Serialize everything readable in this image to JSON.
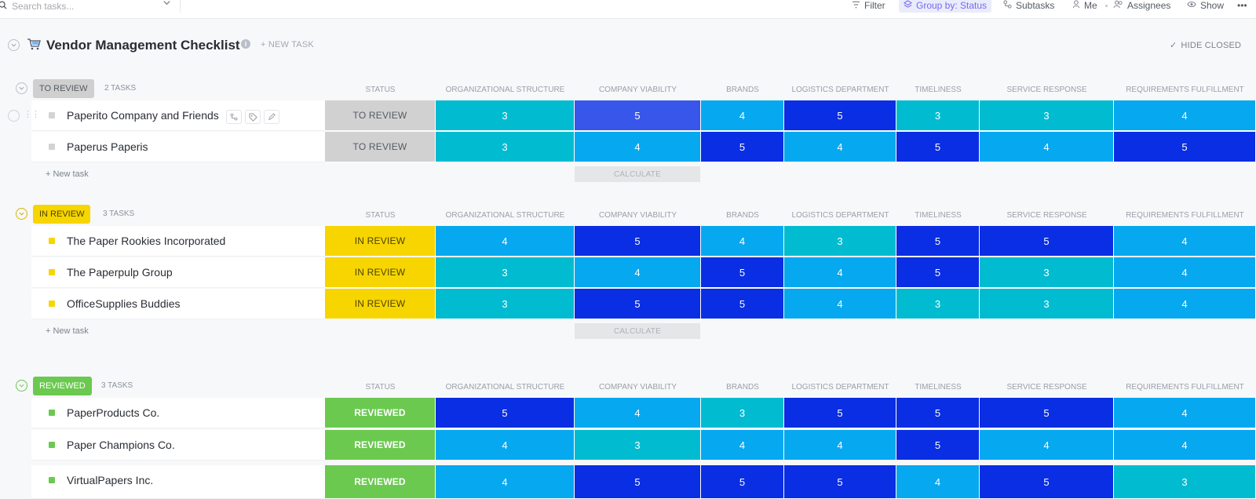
{
  "toolbar": {
    "search_placeholder": "Search tasks...",
    "filter": "Filter",
    "group_by": "Group by: Status",
    "subtasks": "Subtasks",
    "me": "Me",
    "assignees": "Assignees",
    "show": "Show",
    "more": "•••"
  },
  "list": {
    "title": "Vendor Management Checklist",
    "new_task": "+ NEW TASK",
    "hide_closed": "HIDE CLOSED",
    "hide_closed_check": "✓"
  },
  "columns": [
    "STATUS",
    "ORGANIZATIONAL STRUCTURE",
    "COMPANY VIABILITY",
    "BRANDS",
    "LOGISTICS DEPARTMENT",
    "TIMELINESS",
    "SERVICE RESPONSE",
    "REQUIREMENTS FULFILLMENT"
  ],
  "colors": {
    "teal": "#01bcd1",
    "sky": "#06a8f0",
    "royal": "#0a2ee3",
    "indigo": "#3856ea",
    "to_review": "#d1d1d1",
    "in_review": "#f7d500",
    "reviewed": "#6bc950"
  },
  "groups": [
    {
      "label": "TO REVIEW",
      "count": "2 TASKS",
      "pill_bg": "#cfcfcf",
      "pill_fg": "#545a63",
      "status_fg": "#545a63",
      "new_task": "+ New task",
      "calculate": "CALCULATE",
      "tasks": [
        {
          "name": "Paperito Company and Friends",
          "status": "TO REVIEW",
          "scores": [
            3,
            5,
            4,
            5,
            3,
            3,
            4
          ],
          "colors": [
            "teal",
            "indigo",
            "sky",
            "royal",
            "teal",
            "teal",
            "sky"
          ]
        },
        {
          "name": "Paperus Paperis",
          "status": "TO REVIEW",
          "scores": [
            3,
            4,
            5,
            4,
            5,
            4,
            5
          ],
          "colors": [
            "teal",
            "sky",
            "royal",
            "sky",
            "royal",
            "sky",
            "royal"
          ]
        }
      ]
    },
    {
      "label": "IN REVIEW",
      "count": "3 TASKS",
      "pill_bg": "#f7d500",
      "pill_fg": "#4d4300",
      "status_fg": "#4d4300",
      "new_task": "+ New task",
      "calculate": "CALCULATE",
      "tasks": [
        {
          "name": "The Paper Rookies Incorporated",
          "status": "IN REVIEW",
          "scores": [
            4,
            5,
            4,
            3,
            5,
            5,
            4
          ],
          "colors": [
            "sky",
            "royal",
            "sky",
            "teal",
            "royal",
            "royal",
            "sky"
          ]
        },
        {
          "name": "The Paperpulp Group",
          "status": "IN REVIEW",
          "scores": [
            3,
            4,
            5,
            4,
            5,
            3,
            4
          ],
          "colors": [
            "teal",
            "sky",
            "royal",
            "sky",
            "royal",
            "teal",
            "sky"
          ]
        },
        {
          "name": "OfficeSupplies Buddies",
          "status": "IN REVIEW",
          "scores": [
            3,
            5,
            5,
            4,
            3,
            3,
            4
          ],
          "colors": [
            "teal",
            "royal",
            "royal",
            "sky",
            "teal",
            "teal",
            "sky"
          ]
        }
      ]
    },
    {
      "label": "REVIEWED",
      "count": "3 TASKS",
      "pill_bg": "#6bc950",
      "pill_fg": "#ffffff",
      "status_fg": "#ffffff",
      "tasks": [
        {
          "name": "PaperProducts Co.",
          "status": "REVIEWED",
          "scores": [
            5,
            4,
            3,
            5,
            5,
            5,
            4
          ],
          "colors": [
            "royal",
            "sky",
            "teal",
            "royal",
            "royal",
            "royal",
            "sky"
          ]
        },
        {
          "name": "Paper Champions Co.",
          "status": "REVIEWED",
          "scores": [
            4,
            3,
            4,
            4,
            5,
            4,
            4
          ],
          "colors": [
            "sky",
            "teal",
            "sky",
            "sky",
            "royal",
            "sky",
            "sky"
          ]
        },
        {
          "name": "VirtualPapers Inc.",
          "status": "REVIEWED",
          "scores": [
            4,
            5,
            5,
            5,
            4,
            5,
            3
          ],
          "colors": [
            "sky",
            "royal",
            "royal",
            "royal",
            "sky",
            "royal",
            "teal"
          ]
        }
      ]
    }
  ]
}
